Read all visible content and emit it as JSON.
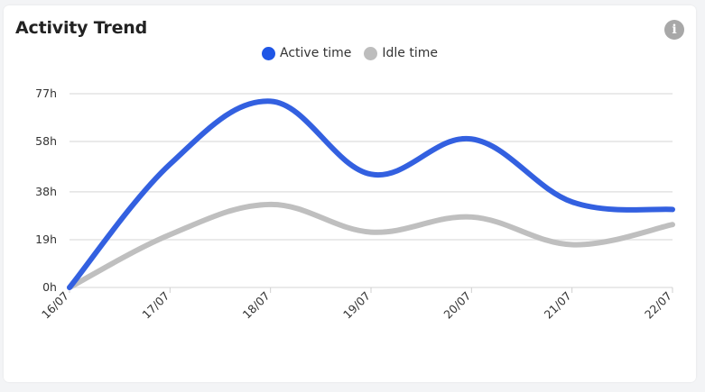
{
  "card": {
    "title": "Activity Trend",
    "info_icon": "info-icon"
  },
  "colors": {
    "active": "#3360e0",
    "idle": "#bfbfbf",
    "grid": "#e3e3e3"
  },
  "chart_data": {
    "type": "line",
    "title": "Activity Trend",
    "categories": [
      "16/07",
      "17/07",
      "18/07",
      "19/07",
      "20/07",
      "21/07",
      "22/07"
    ],
    "series": [
      {
        "name": "Active time",
        "values": [
          0,
          49,
          74,
          45,
          59,
          34,
          31
        ]
      },
      {
        "name": "Idle time",
        "values": [
          0,
          21,
          33,
          22,
          28,
          17,
          25
        ]
      }
    ],
    "y_ticks": [
      0,
      19,
      38,
      58,
      77
    ],
    "y_tick_labels": [
      "0h",
      "19h",
      "38h",
      "58h",
      "77h"
    ],
    "ylim": [
      0,
      77
    ],
    "grid": true,
    "legend_position": "top-center"
  }
}
